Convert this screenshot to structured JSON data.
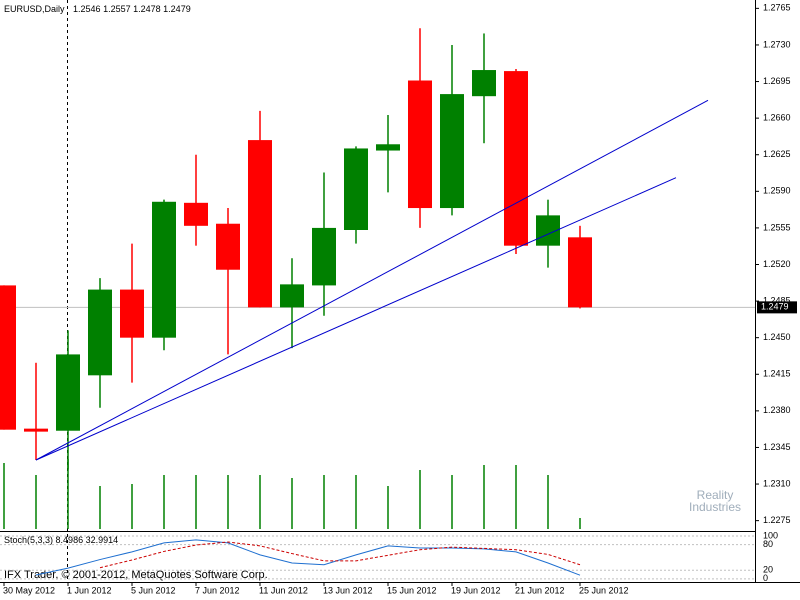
{
  "chart_data": {
    "type": "candlestick",
    "title": "EURUSD,Daily",
    "categories": [
      "30 May 2012",
      null,
      "1 Jun 2012",
      null,
      "5 Jun 2012",
      null,
      "7 Jun 2012",
      null,
      "11 Jun 2012",
      null,
      "13 Jun 2012",
      null,
      "15 Jun 2012",
      null,
      "19 Jun 2012",
      null,
      "21 Jun 2012",
      null,
      "25 Jun 2012"
    ],
    "open": [
      1.25,
      1.2363,
      1.2361,
      1.2414,
      1.2496,
      1.245,
      1.2579,
      1.2559,
      1.2639,
      1.2479,
      1.25,
      1.2553,
      1.2629,
      1.2696,
      1.2574,
      1.2681,
      1.2705,
      1.2538,
      1.2546
    ],
    "high": [
      1.25,
      1.2426,
      1.2457,
      1.2507,
      1.254,
      1.2582,
      1.2625,
      1.2574,
      1.2667,
      1.2526,
      1.2608,
      1.2633,
      1.2663,
      1.2746,
      1.273,
      1.2741,
      1.2707,
      1.2582,
      1.2557
    ],
    "low": [
      1.2362,
      1.2333,
      1.2324,
      1.2383,
      1.2407,
      1.2438,
      1.2538,
      1.2434,
      1.2479,
      1.244,
      1.2471,
      1.254,
      1.2589,
      1.2555,
      1.2567,
      1.2636,
      1.253,
      1.2517,
      1.2478
    ],
    "close": [
      1.2362,
      1.2361,
      1.2434,
      1.2496,
      1.245,
      1.258,
      1.2557,
      1.2515,
      1.2479,
      1.2501,
      1.2555,
      1.2631,
      1.2635,
      1.2574,
      1.2683,
      1.2706,
      1.2538,
      1.2567,
      1.2479
    ],
    "up_color": "#008000",
    "down_color": "#ff0000",
    "volume": [
      66,
      54,
      70,
      43,
      45,
      54,
      54,
      54,
      54,
      51,
      54,
      54,
      43,
      59,
      54,
      64,
      64,
      54,
      11
    ],
    "ylim": [
      1.2267,
      1.2773
    ],
    "yticks": [
      1.2275,
      {
        "value": 1.231,
        "label": "1.2310"
      },
      1.2345,
      {
        "value": 1.238,
        "label": "1.2380"
      },
      1.2415,
      {
        "value": 1.245,
        "label": "1.2450"
      },
      1.2485,
      {
        "value": 1.252,
        "label": "1.2520"
      },
      1.2555,
      {
        "value": 1.259,
        "label": "1.2590"
      },
      1.2625,
      {
        "value": 1.266,
        "label": "1.2660"
      },
      1.2695,
      {
        "value": 1.273,
        "label": "1.2730"
      },
      1.2765
    ],
    "trendlines": [
      {
        "color": "#0000cc",
        "x": [
          1,
          22
        ],
        "y": [
          1.2333,
          1.2677
        ]
      },
      {
        "color": "#0000cc",
        "x": [
          1,
          21
        ],
        "y": [
          1.2333,
          1.2603
        ]
      }
    ],
    "stochastic": {
      "name": "Stoch(5,3,3)",
      "k": [
        null,
        9,
        25,
        45,
        63,
        84,
        91,
        84,
        56,
        37,
        33,
        56,
        77,
        72,
        72,
        70,
        63,
        37,
        8.4986
      ],
      "d": [
        null,
        null,
        null,
        26,
        44,
        64,
        79,
        86,
        77,
        59,
        42,
        42,
        55,
        68,
        74,
        71,
        68,
        57,
        32.9914
      ],
      "k_color": "#1e6fd0",
      "d_color": "#cc0000",
      "ylim": [
        -5,
        107
      ],
      "yticks": [
        0,
        20,
        80,
        100
      ]
    },
    "watermark": "IFX Trader, © 2001-2012, MetaQuotes Software Corp.",
    "logo": [
      "Reality",
      "Industries"
    ]
  }
}
